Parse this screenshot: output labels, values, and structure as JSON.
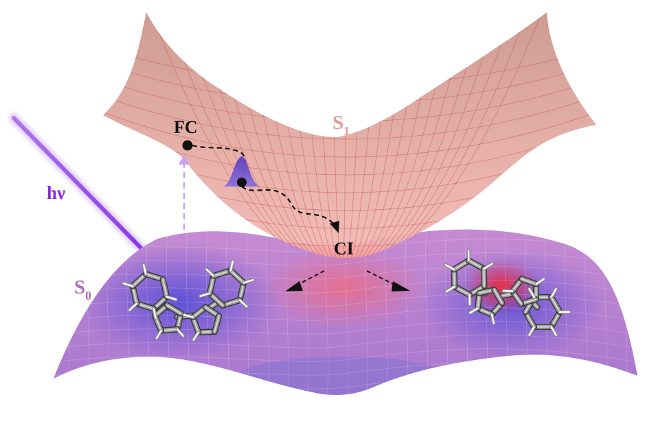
{
  "labels": {
    "fc": "FC",
    "ci": "CI",
    "s1": "S",
    "s1_sub": "1",
    "s0": "S",
    "s0_sub": "0",
    "photon": "hν"
  },
  "colors": {
    "s1_surface": "#d9a19a",
    "s1_grid": "#c45a52",
    "s0_surface": "#b77fd0",
    "s0_well": "#6a5cd6",
    "s0_hot": "#e23a4a",
    "photon_beam": "#8a2be2",
    "excitation_arrow": "#c9a4ec",
    "wavepacket": "#6a4fc8",
    "path": "#111111",
    "s1_label": "#e79a90",
    "s0_label": "#b46bb8",
    "photon_label": "#8a2be2"
  },
  "icons": {
    "wavepacket": "bell-shaped-wavepacket",
    "left_molecule": "planar-fulvalene-molecule",
    "right_molecule": "twisted-fulvalene-molecule"
  }
}
